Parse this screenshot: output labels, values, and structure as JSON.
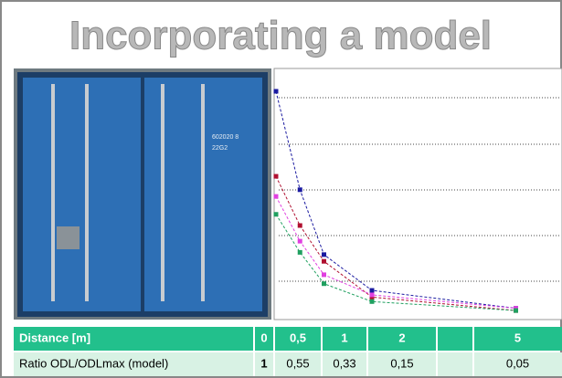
{
  "title": "Incorporating a model",
  "table": {
    "header": [
      "Distance [m]",
      "0",
      "0,5",
      "1",
      "2",
      "5"
    ],
    "row": [
      "Ratio ODL/ODLmax (model)",
      "1",
      "0,55",
      "0,33",
      "0,15",
      "0,05"
    ]
  },
  "chart_data": {
    "type": "line",
    "x": [
      0,
      0.5,
      1,
      2,
      5
    ],
    "xlim": [
      0,
      6
    ],
    "ylim": [
      0,
      1
    ],
    "series": [
      {
        "color": "#1a1aa0",
        "values": [
          1,
          0.56,
          0.27,
          0.11,
          0.03
        ]
      },
      {
        "color": "#b01030",
        "values": [
          0.62,
          0.4,
          0.24,
          0.08,
          0.02
        ]
      },
      {
        "color": "#e040e0",
        "values": [
          0.53,
          0.33,
          0.18,
          0.09,
          0.03
        ]
      },
      {
        "color": "#20a060",
        "values": [
          0.45,
          0.28,
          0.14,
          0.06,
          0.02
        ]
      }
    ]
  }
}
